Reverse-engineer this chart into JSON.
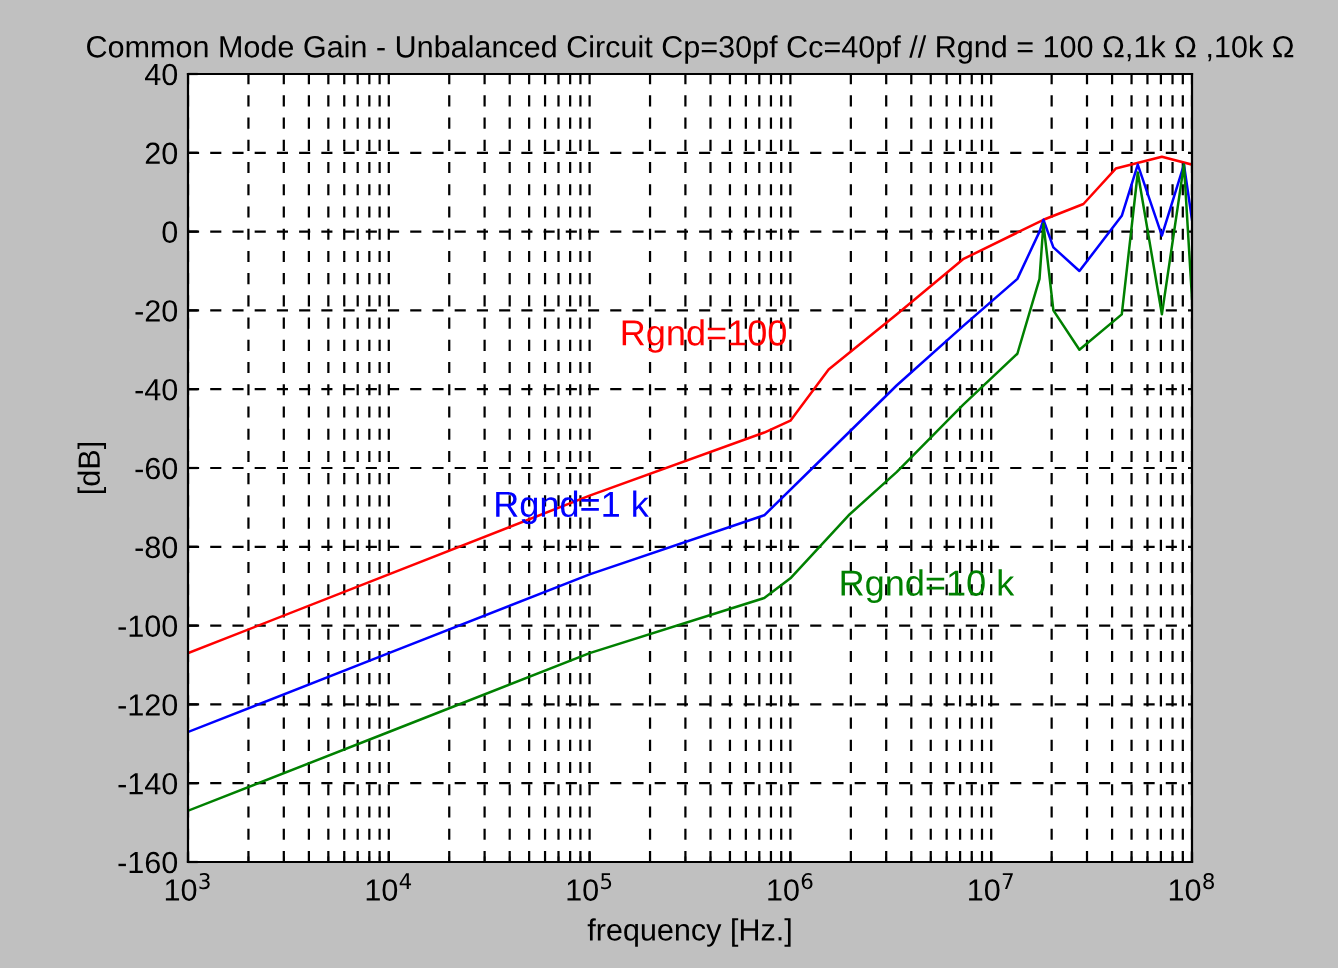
{
  "chart_data": {
    "type": "line",
    "title": "Common Mode Gain - Unbalanced Circuit Cp=30pf Cc=40pf // Rgnd = 100 Ω,1k Ω ,10k Ω",
    "xlabel": "frequency [Hz.]",
    "ylabel": "[dB]",
    "log": "x",
    "xlim": [
      1000,
      100000000
    ],
    "ylim": [
      -160,
      40
    ],
    "xticks": [
      {
        "value": 1000,
        "label": "10$^{3}$"
      },
      {
        "value": 10000,
        "label": "10$^{4}$"
      },
      {
        "value": 100000,
        "label": "10$^{5}$"
      },
      {
        "value": 1000000,
        "label": "10$^{6}$"
      },
      {
        "value": 10000000,
        "label": "10$^{7}$"
      },
      {
        "value": 100000000,
        "label": "10$^{8}$"
      }
    ],
    "yticks": [
      -160,
      -140,
      -120,
      -100,
      -80,
      -60,
      -40,
      -20,
      0,
      20,
      40
    ],
    "grid": true,
    "marker": "none",
    "line_style": "solid",
    "legend": false,
    "series": [
      {
        "name": "Rgnd=100",
        "color": "#ff0000",
        "x": [
          1000,
          10000,
          100000,
          741000,
          1000000,
          1550000,
          3390000,
          7240000,
          18200000,
          28800000,
          41700000,
          70800000,
          100000000
        ],
        "values": [
          -107,
          -87,
          -67,
          -51,
          -48,
          -35,
          -21,
          -7,
          3,
          7,
          16,
          19,
          17
        ]
      },
      {
        "name": "Rgnd=1 k",
        "color": "#0000ff",
        "x": [
          1000,
          10000,
          100000,
          741000,
          1550000,
          3390000,
          7240000,
          13500000,
          17400000,
          18200000,
          20400000,
          27500000,
          44700000,
          53700000,
          70800000,
          91200000,
          100000000
        ],
        "values": [
          -127,
          -107,
          -87,
          -72,
          -56,
          -39,
          -24,
          -12,
          0,
          3,
          -4,
          -10,
          4,
          17,
          -1,
          17,
          3
        ]
      },
      {
        "name": "Rgnd=10 k",
        "color": "#008000",
        "x": [
          1000,
          10000,
          100000,
          741000,
          1000000,
          1950000,
          3390000,
          7240000,
          13500000,
          17400000,
          18200000,
          20400000,
          27500000,
          44700000,
          53700000,
          70800000,
          91200000,
          100000000
        ],
        "values": [
          -147,
          -127,
          -107,
          -93,
          -88,
          -72,
          -61,
          -44,
          -31,
          -12,
          2,
          -20,
          -30,
          -21,
          15,
          -21,
          17,
          -17
        ]
      }
    ]
  }
}
